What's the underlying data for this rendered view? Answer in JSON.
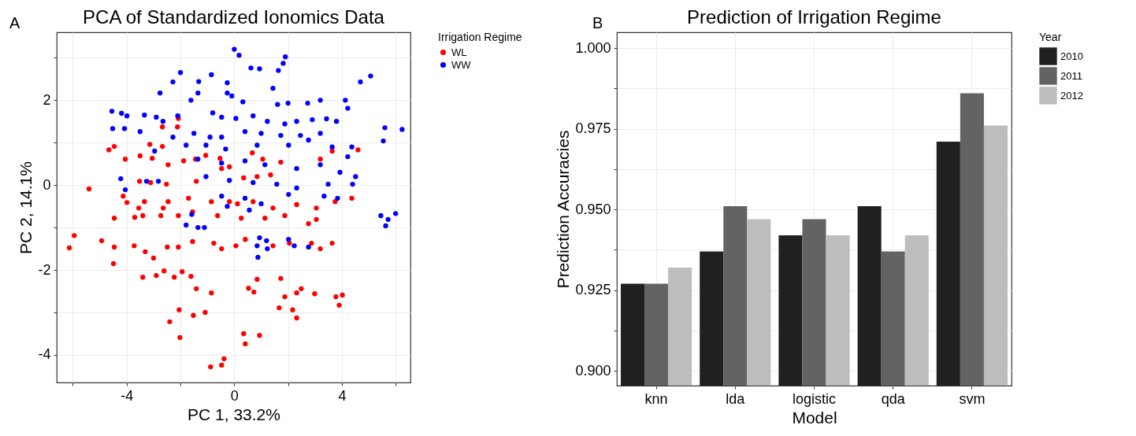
{
  "chart_data": [
    {
      "type": "scatter",
      "title": "PCA of Standardized Ionomics Data",
      "xlabel": "PC 1, 33.2%",
      "ylabel": "PC 2, 14.1%",
      "legend_title": "Irrigation Regime",
      "legend": "right",
      "grid": true,
      "marker": "circle",
      "annotations": [
        "A"
      ],
      "xlim": [
        -6.6,
        6.55
      ],
      "ylim": [
        -4.65,
        3.6
      ],
      "xticks": [
        {
          "value": -6,
          "label": null
        },
        -4,
        {
          "value": -2,
          "label": null
        },
        0,
        {
          "value": 2,
          "label": null
        },
        4,
        {
          "value": 6,
          "label": null
        }
      ],
      "yticks": [
        -4,
        {
          "value": -3,
          "label": null
        },
        -2,
        {
          "value": -1,
          "label": null
        },
        0,
        {
          "value": 1,
          "label": null
        },
        2,
        {
          "value": 3,
          "label": null
        }
      ],
      "series": [
        {
          "name": "WL",
          "color": "#ff0000",
          "x": [
            -4.66,
            -4.46,
            -4.05,
            -3.5,
            -3.05,
            -2.67,
            -2.08,
            -2.11,
            -2.67,
            -3.14,
            -2.46,
            -1.88,
            -1.44,
            -1.06,
            -0.53,
            -0.47,
            -0.18,
            0.67,
            1.06,
            1.73,
            0.35,
            0.85,
            1.35,
            -3.52,
            -3.11,
            -2.52,
            -1.41,
            3.64,
            4.6,
            3.2,
            -5.4,
            -4.13,
            -3.99,
            -3.55,
            -3.34,
            -2.64,
            -2.46,
            -1.7,
            -0.85,
            -0.18,
            0.12,
            0.7,
            1.44,
            1.88,
            2.32,
            3.05,
            4.37,
            3.75,
            -4.46,
            -3.7,
            -3.4,
            -2.73,
            -2.08,
            -1.55,
            -0.62,
            0.26,
            1.14,
            2.76,
            3.05,
            -6.13,
            -5.95,
            -4.93,
            -4.46,
            -4.49,
            -3.72,
            -3.31,
            -3,
            -2.49,
            -2.08,
            -1.55,
            -0.76,
            -0.47,
            0.06,
            0.41,
            1.44,
            2.05,
            2.87,
            3.2,
            3.64,
            -3.4,
            -2.9,
            -2.61,
            -2.23,
            -1.94,
            -1.61,
            -0.85,
            -1.41,
            0.53,
            0.73,
            0.85,
            1.73,
            1.88,
            2.32,
            2.49,
            2.99,
            3.78,
            4.02,
            3.9,
            1.67,
            2.17,
            2.32,
            -2.05,
            -1.52,
            -1.08,
            -2.4,
            -2.02,
            0.35,
            0.94,
            0.41,
            -0.38,
            -0.47,
            -0.88
          ],
          "values": [
            0.83,
            0.91,
            0.61,
            0.69,
            0.63,
            0.91,
            1.57,
            1.37,
            1.37,
            0.96,
            0.48,
            0.57,
            0.61,
            0.7,
            0.63,
            0.39,
            0.43,
            0.76,
            0.61,
            0.54,
            0.17,
            0.2,
            0.24,
            0.09,
            0.06,
            0.02,
            0.09,
            0.8,
            0.83,
            0.61,
            -0.09,
            -0.26,
            -0.41,
            -0.54,
            -0.39,
            -0.54,
            -0.39,
            -0.31,
            -0.39,
            -0.39,
            -0.44,
            -0.39,
            -0.54,
            -0.72,
            -0.46,
            -0.54,
            -0.31,
            -0.39,
            -0.78,
            -0.76,
            -0.72,
            -0.72,
            -0.72,
            -0.63,
            -0.72,
            -0.78,
            -0.78,
            -0.91,
            -0.81,
            -1.48,
            -1.19,
            -1.31,
            -1.46,
            -1.85,
            -1.43,
            -1.57,
            -1.72,
            -1.46,
            -1.46,
            -1.33,
            -1.37,
            -1.5,
            -1.43,
            -1.28,
            -1.43,
            -1.37,
            -1.37,
            -1.5,
            -1.37,
            -2.17,
            -2.13,
            -2.02,
            -2.17,
            -2.04,
            -2.15,
            -2.54,
            -2.44,
            -2.43,
            -2.52,
            -2.22,
            -2.2,
            -2.63,
            -2.54,
            -2.44,
            -2.56,
            -2.63,
            -2.59,
            -2.83,
            -2.89,
            -2.94,
            -3.13,
            -2.94,
            -3.07,
            -3,
            -3.22,
            -3.59,
            -3.5,
            -3.54,
            -3.74,
            -4.09,
            -4.24,
            -4.28
          ]
        },
        {
          "name": "WW",
          "color": "#0000ff",
          "x": [
            0,
            0.18,
            0.62,
            0.94,
            1.9,
            1.82,
            1.64,
            5.07,
            4.69,
            1.44,
            -2,
            -2.28,
            -0.85,
            -1.32,
            -0.26,
            -2.76,
            -1.35,
            -0.26,
            -1.61,
            -0.09,
            0.32,
            1.61,
            2,
            2.73,
            3.2,
            4.22,
            4.13,
            -4.55,
            -4.19,
            -3.99,
            -3.34,
            -2.9,
            -2.1,
            -0.8,
            -0.47,
            0.06,
            0.7,
            1.23,
            1.88,
            2.32,
            2.9,
            3.43,
            3.8,
            -4.52,
            -4.08,
            -3.5,
            -2.65,
            -2.28,
            -1.5,
            -0.9,
            -0.47,
            0.4,
            1,
            1.73,
            2.46,
            3.2,
            5.6,
            6.24,
            5.54,
            3.64,
            4.37,
            2.76,
            2.02,
            0.85,
            -0.32,
            -1.05,
            -1.79,
            -2.96,
            4.22,
            3.2,
            1.14,
            0.4,
            -0.47,
            -1.35,
            2.32,
            3.93,
            4.51,
            3.49,
            1.58,
            0.7,
            -0.18,
            -1.05,
            -4.22,
            -4.05,
            -3.26,
            -2.82,
            2.32,
            2.02,
            3.34,
            3.84,
            4.4,
            -0.47,
            0.4,
            -1.58,
            -1.35,
            0.56,
            1,
            -0.26,
            5.45,
            5.72,
            6,
            5.63,
            0.94,
            0.85,
            1.2,
            1.23,
            -1.79,
            -1.11,
            2.02,
            2.23,
            2.76,
            0.88
          ],
          "values": [
            3.2,
            3.06,
            2.76,
            2.74,
            3.02,
            2.87,
            2.7,
            2.57,
            2.43,
            2.28,
            2.65,
            2.43,
            2.6,
            2.44,
            2.41,
            2.17,
            2.17,
            2.17,
            2,
            2.1,
            1.96,
            1.9,
            1.93,
            1.93,
            2,
            1.81,
            2,
            1.74,
            1.69,
            1.63,
            1.65,
            1.6,
            1.63,
            1.7,
            1.6,
            1.57,
            1.63,
            1.5,
            1.44,
            1.5,
            1.54,
            1.56,
            1.5,
            1.33,
            1.33,
            1.26,
            1.5,
            1.13,
            1.22,
            1.13,
            1.13,
            1.26,
            1.22,
            1.17,
            1.17,
            1.22,
            1.35,
            1.31,
            1.04,
            0.9,
            0.9,
            1.06,
            0.94,
            0.94,
            0.85,
            0.94,
            0.94,
            0.8,
            0.67,
            0.48,
            0.48,
            0.57,
            0.52,
            0.61,
            0.39,
            0.3,
            0.2,
            0.02,
            0.02,
            0.06,
            0.11,
            0.2,
            0.15,
            -0.11,
            0.09,
            0.09,
            -0.07,
            -0.22,
            -0.26,
            -0.31,
            0.02,
            -0.26,
            -0.31,
            -0.69,
            -1,
            -0.59,
            -0.44,
            -0.5,
            -0.72,
            -0.81,
            -0.67,
            -0.96,
            -1.24,
            -1.43,
            -1.31,
            -1.5,
            -0.94,
            -1,
            -1.28,
            -1.43,
            -1.46,
            -1.7
          ]
        }
      ]
    },
    {
      "type": "bar",
      "title": "Prediction of Irrigation Regime",
      "xlabel": "Model",
      "ylabel": "Prediction Accuracies",
      "legend_title": "Year",
      "legend": "right",
      "grid": true,
      "annotations": [
        "B"
      ],
      "categories": [
        "knn",
        "lda",
        "logistic",
        "qda",
        "svm"
      ],
      "ylim": [
        0.8954,
        1.0049
      ],
      "yticks": [
        {
          "value": 0.9,
          "label": "0.900"
        },
        {
          "value": 0.9125,
          "label": null
        },
        {
          "value": 0.925,
          "label": "0.925"
        },
        {
          "value": 0.9375,
          "label": null
        },
        {
          "value": 0.95,
          "label": "0.950"
        },
        {
          "value": 0.9625,
          "label": null
        },
        {
          "value": 0.975,
          "label": "0.975"
        },
        {
          "value": 0.9875,
          "label": null
        },
        {
          "value": 1,
          "label": "1.000"
        }
      ],
      "series": [
        {
          "name": "2010",
          "color": "#202020",
          "values": [
            0.927,
            0.937,
            0.942,
            0.951,
            0.971
          ]
        },
        {
          "name": "2011",
          "color": "#636363",
          "values": [
            0.927,
            0.951,
            0.947,
            0.937,
            0.986
          ]
        },
        {
          "name": "2012",
          "color": "#bdbdbd",
          "values": [
            0.932,
            0.947,
            0.942,
            0.942,
            0.976
          ]
        }
      ]
    }
  ]
}
